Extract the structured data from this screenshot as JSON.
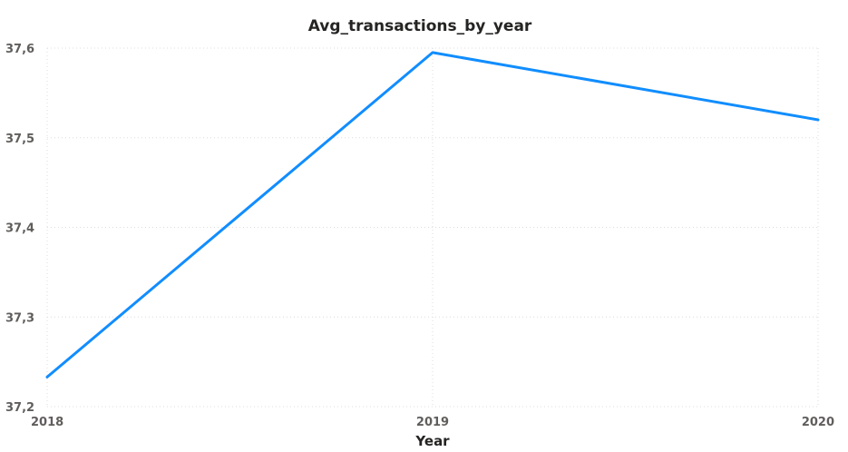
{
  "chart_data": {
    "type": "line",
    "title": "Avg_transactions_by_year",
    "xlabel": "Year",
    "ylabel": "",
    "x": [
      "2018",
      "2019",
      "2020"
    ],
    "series": [
      {
        "values": [
          37.233,
          37.595,
          37.52
        ],
        "color": "#118DFF"
      }
    ],
    "ylim": [
      37.2,
      37.6
    ],
    "yticks": [
      "37,2",
      "37,3",
      "37,4",
      "37,5",
      "37,6"
    ],
    "grid": true
  }
}
